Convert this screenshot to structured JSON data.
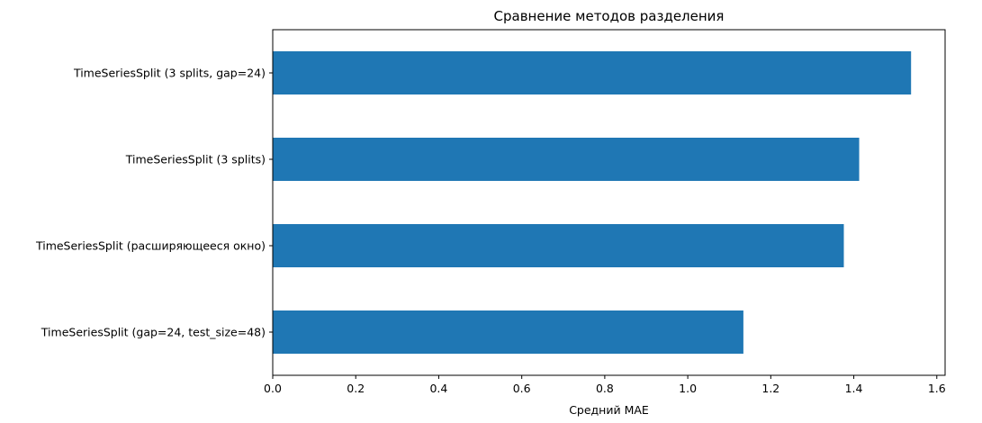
{
  "chart_data": {
    "type": "bar",
    "orientation": "horizontal",
    "title": "Сравнение методов разделения",
    "xlabel": "Средний MAE",
    "ylabel": "",
    "xlim": [
      0,
      1.62
    ],
    "x_ticks": [
      0.0,
      0.2,
      0.4,
      0.6,
      0.8,
      1.0,
      1.2,
      1.4,
      1.6
    ],
    "x_tick_labels": [
      "0.0",
      "0.2",
      "0.4",
      "0.6",
      "0.8",
      "1.0",
      "1.2",
      "1.4",
      "1.6"
    ],
    "categories": [
      "TimeSeriesSplit (3 splits, gap=24)",
      "TimeSeriesSplit (3 splits)",
      "TimeSeriesSplit (расширяющееся окно)",
      "TimeSeriesSplit (gap=24, test_size=48)"
    ],
    "values": [
      1.538,
      1.413,
      1.376,
      1.134
    ],
    "bar_color": "#1f77b4",
    "grid": false,
    "legend": "none"
  }
}
